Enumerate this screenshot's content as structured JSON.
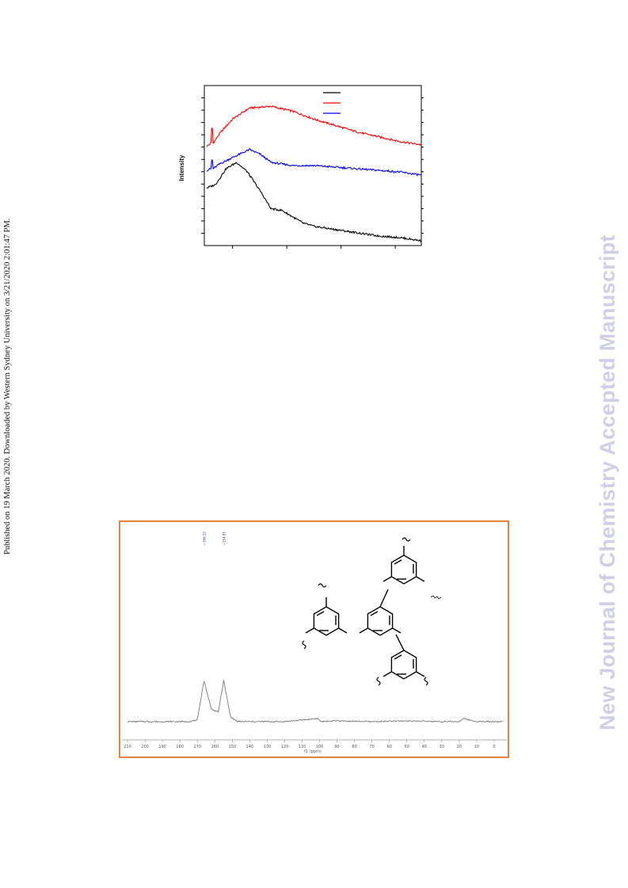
{
  "sidebar_text": "Published on 19 March 2020. Downloaded by Western Sydney University on 3/21/2020 2:01:47 PM.",
  "watermark": "New Journal of Chemistry Accepted Manuscript",
  "colors": {
    "frame": "#e8823a",
    "watermark": "#cfd0e6",
    "series_black": "#000000",
    "series_red": "#ff0000",
    "series_blue": "#0000ff"
  },
  "chart_data": [
    {
      "type": "line",
      "title": "",
      "xlabel": "",
      "ylabel": "Intensity",
      "legend": {
        "position": "top-right",
        "colors": [
          "#000000",
          "#ff0000",
          "#0000ff"
        ]
      },
      "series": [
        {
          "color": "#ff0000",
          "x": [
            0,
            0.02,
            0.025,
            0.03,
            0.06,
            0.12,
            0.2,
            0.3,
            0.4,
            0.5,
            0.6,
            0.7,
            0.8,
            0.9,
            1.0
          ],
          "values": [
            0.62,
            0.64,
            0.78,
            0.64,
            0.7,
            0.79,
            0.86,
            0.87,
            0.84,
            0.79,
            0.75,
            0.71,
            0.68,
            0.65,
            0.63
          ]
        },
        {
          "color": "#0000ff",
          "x": [
            0,
            0.02,
            0.025,
            0.03,
            0.06,
            0.12,
            0.2,
            0.25,
            0.3,
            0.4,
            0.5,
            0.6,
            0.7,
            0.8,
            0.9,
            1.0
          ],
          "values": [
            0.47,
            0.48,
            0.56,
            0.48,
            0.51,
            0.55,
            0.6,
            0.57,
            0.52,
            0.5,
            0.5,
            0.49,
            0.48,
            0.47,
            0.46,
            0.44
          ]
        },
        {
          "color": "#000000",
          "x": [
            0,
            0.04,
            0.09,
            0.14,
            0.19,
            0.25,
            0.3,
            0.35,
            0.4,
            0.45,
            0.5,
            0.6,
            0.7,
            0.8,
            0.9,
            1.0
          ],
          "values": [
            0.36,
            0.38,
            0.48,
            0.52,
            0.46,
            0.34,
            0.23,
            0.22,
            0.18,
            0.14,
            0.12,
            0.1,
            0.08,
            0.06,
            0.05,
            0.03
          ]
        }
      ]
    },
    {
      "type": "line",
      "title": "",
      "xlabel": "f1 (ppm)",
      "xlim": [
        210,
        -5
      ],
      "xticks": [
        "210",
        "200",
        "190",
        "180",
        "170",
        "160",
        "150",
        "140",
        "130",
        "120",
        "110",
        "100",
        "90",
        "80",
        "70",
        "60",
        "50",
        "40",
        "30",
        "20",
        "10",
        "0"
      ],
      "peak_labels": [
        "166.22",
        "154.91"
      ],
      "series": [
        {
          "x": [
            210,
            175,
            170,
            166.2,
            162,
            158,
            154.9,
            151,
            147,
            140,
            120,
            101,
            99,
            90,
            70,
            50,
            30,
            20,
            18,
            10,
            0,
            -5
          ],
          "values": [
            0.04,
            0.04,
            0.05,
            0.3,
            0.12,
            0.1,
            0.3,
            0.07,
            0.04,
            0.04,
            0.04,
            0.06,
            0.04,
            0.045,
            0.04,
            0.045,
            0.04,
            0.04,
            0.06,
            0.04,
            0.04,
            0.04
          ]
        }
      ]
    }
  ]
}
